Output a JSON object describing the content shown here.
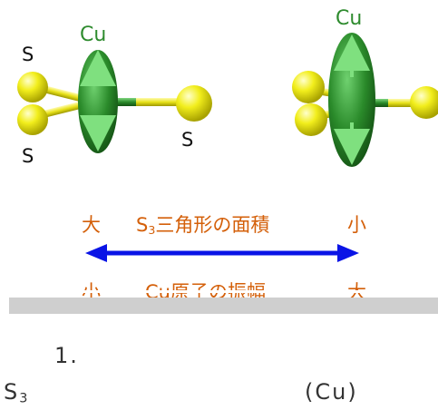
{
  "figure": {
    "s_label": "S",
    "cu_label": "Cu",
    "arrow_color": "#0a14e6",
    "cu_color": "#1f7a1f",
    "s_color": "#f2ee1c"
  },
  "top_row": {
    "left": "大",
    "middle_prefix": "S",
    "middle_sub": "3",
    "middle_suffix": "三角形の面積",
    "right": "小"
  },
  "bottom_row": {
    "left": "小",
    "middle": "Cu原子の振幅",
    "right": "大"
  },
  "caption": {
    "line1": "1.",
    "line2_prefix": "S",
    "line2_sub": "3",
    "line2_right": "(Cu)"
  }
}
